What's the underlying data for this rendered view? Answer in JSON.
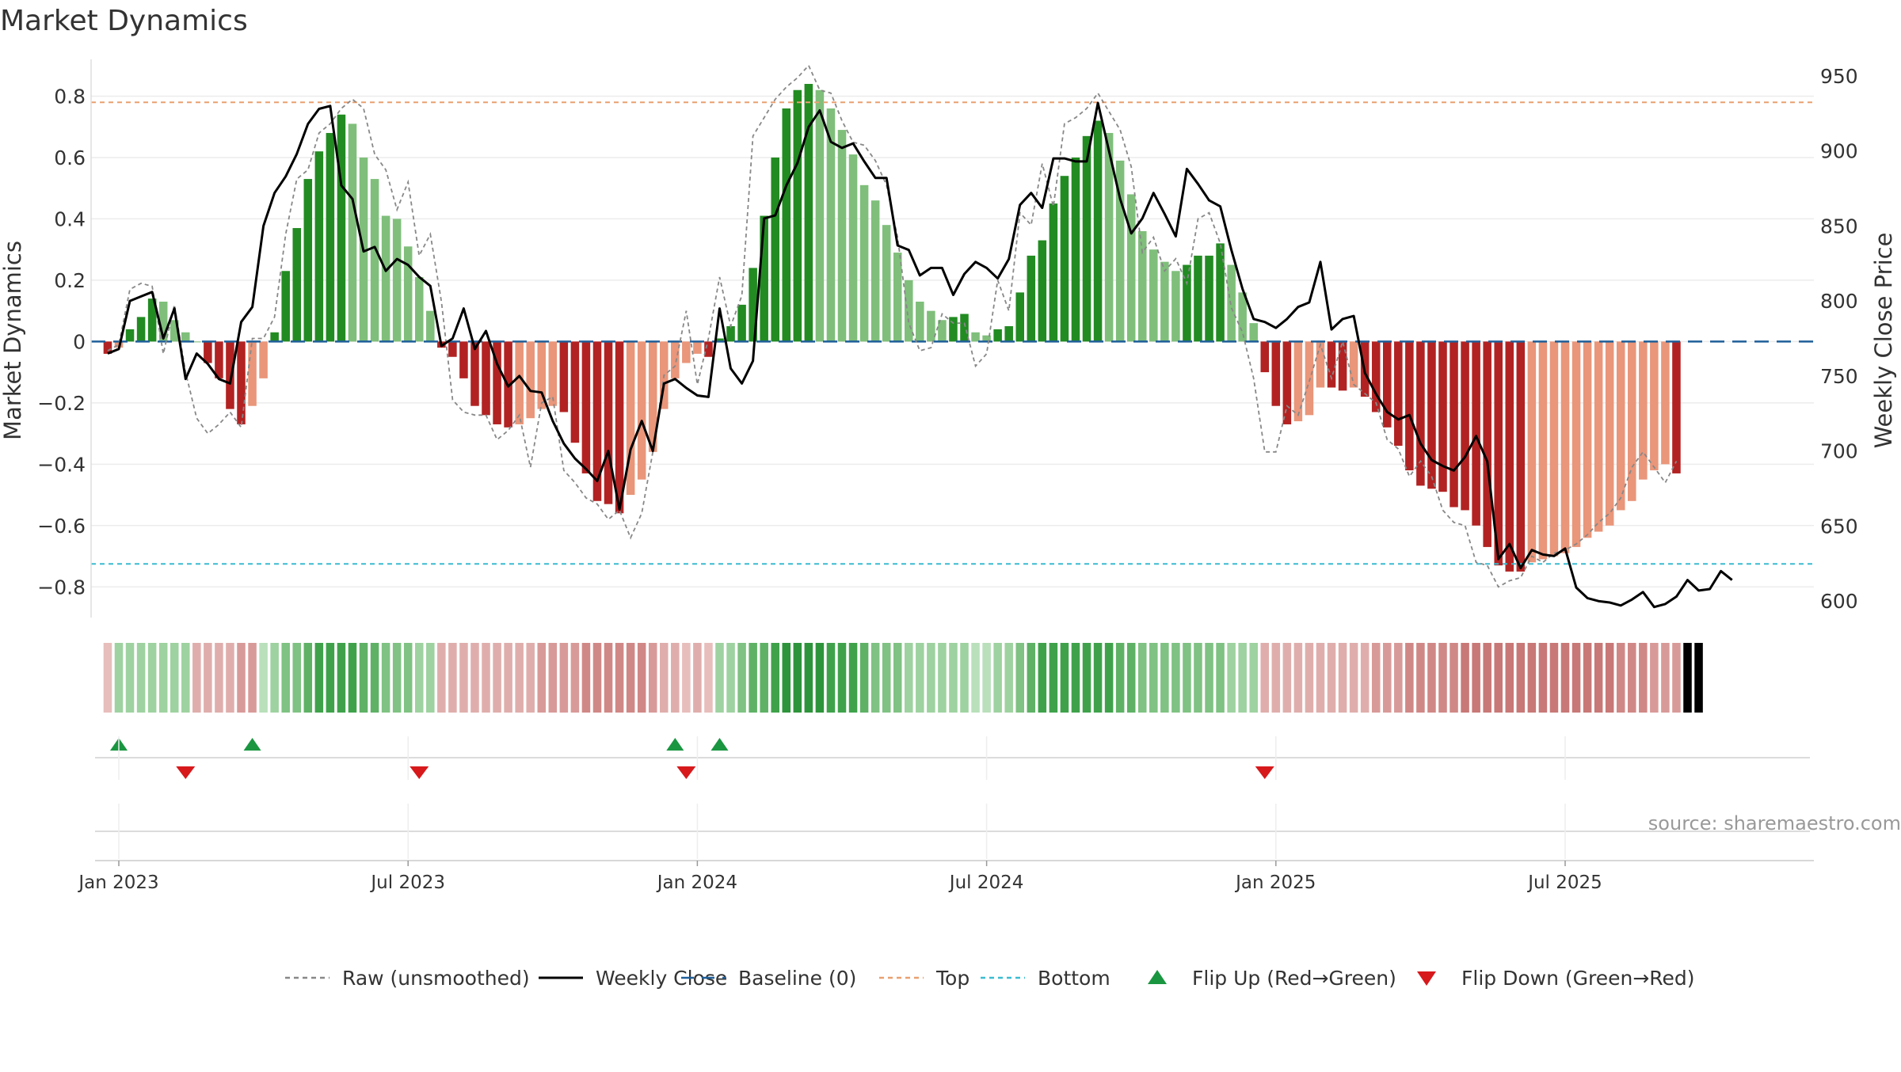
{
  "chart_data": {
    "type": "bar",
    "title": "Market Dynamics",
    "ylabel": "Market Dynamics",
    "y2label": "Weekly Close Price",
    "ylim": [
      -0.9,
      0.92
    ],
    "y2lim": [
      589,
      961
    ],
    "yticks": [
      -0.8,
      -0.6,
      -0.4,
      -0.2,
      0,
      0.2,
      0.4,
      0.6,
      0.8
    ],
    "y2ticks": [
      600,
      650,
      700,
      750,
      800,
      850,
      900,
      950
    ],
    "xticks": [
      {
        "label": "Jan 2023",
        "week": 0
      },
      {
        "label": "Jul 2023",
        "week": 26
      },
      {
        "label": "Jan 2024",
        "week": 52
      },
      {
        "label": "Jul 2024",
        "week": 78
      },
      {
        "label": "Jan 2025",
        "week": 104
      },
      {
        "label": "Jul 2025",
        "week": 130
      }
    ],
    "x_start_week": -2,
    "x_end_week": 141,
    "top_line": 0.78,
    "bottom_line": -0.725,
    "grid": true,
    "legend_position": "bottom",
    "bar_colors": {
      "strong_green": "#228b22",
      "weak_green": "#7fbf7b",
      "strong_red": "#b22222",
      "weak_red": "#e9967a"
    },
    "line_colors": {
      "close": "#000000",
      "raw": "#888888",
      "baseline": "#1f5f99",
      "top": "#e9a070",
      "bottom": "#3bbcd0",
      "flip_up": "#1a9641",
      "flip_down": "#d7191c"
    },
    "series": [
      {
        "name": "Market Dynamics",
        "values": [
          -0.04,
          -0.02,
          0.04,
          0.08,
          0.14,
          0.13,
          0.07,
          0.03,
          0,
          -0.07,
          -0.12,
          -0.22,
          -0.27,
          -0.21,
          -0.12,
          0.03,
          0.23,
          0.37,
          0.53,
          0.62,
          0.68,
          0.74,
          0.71,
          0.6,
          0.53,
          0.41,
          0.4,
          0.31,
          0.21,
          0.1,
          -0.02,
          -0.05,
          -0.12,
          -0.21,
          -0.24,
          -0.27,
          -0.28,
          -0.27,
          -0.25,
          -0.22,
          -0.21,
          -0.23,
          -0.33,
          -0.43,
          -0.52,
          -0.53,
          -0.56,
          -0.5,
          -0.45,
          -0.36,
          -0.22,
          -0.12,
          -0.07,
          -0.04,
          -0.05,
          0.01,
          0.05,
          0.12,
          0.24,
          0.41,
          0.6,
          0.76,
          0.82,
          0.84,
          0.82,
          0.76,
          0.69,
          0.61,
          0.51,
          0.46,
          0.38,
          0.29,
          0.2,
          0.13,
          0.1,
          0.07,
          0.08,
          0.09,
          0.03,
          0.02,
          0.04,
          0.05,
          0.16,
          0.28,
          0.33,
          0.45,
          0.54,
          0.6,
          0.67,
          0.72,
          0.68,
          0.59,
          0.48,
          0.36,
          0.3,
          0.26,
          0.23,
          0.25,
          0.28,
          0.28,
          0.32,
          0.25,
          0.16,
          0.06,
          -0.1,
          -0.21,
          -0.27,
          -0.26,
          -0.24,
          -0.15,
          -0.15,
          -0.16,
          -0.15,
          -0.18,
          -0.23,
          -0.28,
          -0.34,
          -0.42,
          -0.47,
          -0.48,
          -0.49,
          -0.54,
          -0.55,
          -0.6,
          -0.67,
          -0.73,
          -0.75,
          -0.75,
          -0.72,
          -0.71,
          -0.7,
          -0.69,
          -0.67,
          -0.64,
          -0.62,
          -0.6,
          -0.55,
          -0.52,
          -0.45,
          -0.42,
          -0.4,
          -0.43
        ]
      },
      {
        "name": "Raw (unsmoothed)",
        "values": [
          -0.03,
          -0.01,
          0.17,
          0.19,
          0.18,
          -0.04,
          0.12,
          -0.1,
          -0.25,
          -0.3,
          -0.27,
          -0.23,
          -0.28,
          0.01,
          0.01,
          0.08,
          0.35,
          0.53,
          0.56,
          0.68,
          0.71,
          0.76,
          0.79,
          0.76,
          0.61,
          0.56,
          0.43,
          0.52,
          0.28,
          0.35,
          0.13,
          -0.19,
          -0.23,
          -0.24,
          -0.24,
          -0.32,
          -0.29,
          -0.24,
          -0.41,
          -0.2,
          -0.18,
          -0.42,
          -0.46,
          -0.51,
          -0.53,
          -0.58,
          -0.55,
          -0.64,
          -0.56,
          -0.36,
          -0.11,
          -0.08,
          0.1,
          -0.14,
          0.01,
          0.21,
          0.05,
          0.15,
          0.67,
          0.73,
          0.79,
          0.83,
          0.86,
          0.9,
          0.82,
          0.81,
          0.72,
          0.65,
          0.64,
          0.59,
          0.51,
          0.34,
          0.06,
          -0.03,
          -0.02,
          0.09,
          0.06,
          0.06,
          -0.08,
          -0.04,
          0.2,
          0.1,
          0.42,
          0.38,
          0.58,
          0.44,
          0.71,
          0.73,
          0.76,
          0.81,
          0.75,
          0.69,
          0.57,
          0.29,
          0.34,
          0.23,
          0.27,
          0.19,
          0.4,
          0.42,
          0.32,
          0.11,
          0.03,
          -0.12,
          -0.36,
          -0.36,
          -0.21,
          -0.24,
          -0.13,
          -0.01,
          -0.12,
          0,
          -0.14,
          -0.17,
          -0.2,
          -0.32,
          -0.35,
          -0.44,
          -0.39,
          -0.44,
          -0.55,
          -0.59,
          -0.6,
          -0.72,
          -0.73,
          -0.8,
          -0.78,
          -0.77,
          -0.7,
          -0.72,
          -0.69,
          -0.68,
          -0.66,
          -0.63,
          -0.59,
          -0.56,
          -0.51,
          -0.41,
          -0.36,
          -0.41,
          -0.46,
          -0.39
        ]
      },
      {
        "name": "Weekly Close",
        "values": [
          765,
          768,
          800,
          803,
          806,
          775,
          795,
          748,
          765,
          758,
          748,
          745,
          786,
          796,
          850,
          872,
          883,
          898,
          918,
          928,
          930,
          877,
          868,
          833,
          836,
          820,
          828,
          824,
          816,
          810,
          770,
          775,
          795,
          768,
          780,
          758,
          743,
          750,
          740,
          739,
          720,
          705,
          695,
          688,
          680,
          700,
          661,
          701,
          720,
          700,
          745,
          748,
          742,
          737,
          736,
          795,
          755,
          745,
          760,
          855,
          857,
          877,
          892,
          916,
          927,
          906,
          902,
          905,
          893,
          882,
          882,
          837,
          834,
          817,
          822,
          822,
          804,
          818,
          826,
          822,
          815,
          828,
          864,
          872,
          862,
          895,
          895,
          893,
          893,
          932,
          900,
          868,
          845,
          855,
          872,
          858,
          843,
          888,
          878,
          867,
          863,
          834,
          808,
          788,
          786,
          782,
          788,
          796,
          799,
          826,
          781,
          788,
          790,
          752,
          738,
          726,
          721,
          724,
          705,
          694,
          690,
          687,
          696,
          710,
          693,
          628,
          638,
          622,
          634,
          631,
          630,
          635,
          609,
          602,
          600,
          599,
          597,
          601,
          606,
          596,
          598,
          603,
          614,
          607,
          608,
          620,
          614
        ]
      }
    ]
  },
  "state_strip": {
    "states": [
      "weak_red",
      "weak_green",
      "weak_green",
      "weak_green",
      "weak_green",
      "weak_green",
      "weak_green",
      "weak_green",
      "weak_red",
      "weak_red",
      "weak_red",
      "weak_red",
      "weak_red",
      "weak_red",
      "weak_green",
      "weak_green",
      "weak_green",
      "weak_green",
      "weak_green",
      "weak_green",
      "weak_green",
      "weak_green",
      "weak_green",
      "weak_green",
      "weak_green",
      "weak_green",
      "weak_green",
      "weak_green",
      "weak_green",
      "weak_green",
      "weak_red",
      "weak_red",
      "weak_red",
      "weak_red",
      "weak_red",
      "weak_red",
      "weak_red",
      "weak_red",
      "weak_red",
      "weak_red",
      "weak_red",
      "weak_red",
      "weak_red",
      "weak_red",
      "weak_red",
      "weak_red",
      "weak_red",
      "weak_red",
      "weak_red",
      "weak_red",
      "weak_red",
      "weak_red",
      "weak_red",
      "weak_red",
      "weak_red",
      "weak_green",
      "weak_green",
      "weak_green",
      "weak_green",
      "weak_green",
      "weak_green",
      "weak_green",
      "weak_green",
      "weak_green",
      "weak_green",
      "weak_green",
      "weak_green",
      "weak_green",
      "weak_green",
      "weak_green",
      "weak_green",
      "weak_green",
      "weak_green",
      "weak_green",
      "weak_green",
      "weak_green",
      "weak_green",
      "weak_green",
      "weak_green",
      "weak_green",
      "weak_green",
      "weak_green",
      "weak_green",
      "weak_green",
      "weak_green",
      "weak_green",
      "weak_green",
      "weak_green",
      "weak_green",
      "weak_green",
      "weak_green",
      "weak_green",
      "weak_green",
      "weak_green",
      "weak_green",
      "weak_green",
      "weak_green",
      "weak_green",
      "weak_green",
      "weak_green",
      "weak_green",
      "weak_green",
      "weak_green",
      "weak_green",
      "weak_red",
      "weak_red",
      "weak_red",
      "weak_red",
      "weak_red",
      "weak_red",
      "weak_red",
      "weak_red",
      "weak_red",
      "weak_red",
      "weak_red",
      "weak_red",
      "weak_red",
      "weak_red",
      "weak_red",
      "weak_red",
      "weak_red",
      "weak_red",
      "weak_red",
      "weak_red",
      "weak_red",
      "weak_red",
      "weak_red",
      "weak_red",
      "weak_red",
      "weak_red",
      "weak_red",
      "weak_red",
      "weak_red",
      "weak_red",
      "weak_red",
      "weak_red",
      "weak_red",
      "weak_red",
      "weak_red",
      "weak_red",
      "weak_red",
      "weak_red",
      "weak_red",
      "weak_red"
    ],
    "intensity": [
      0.2,
      0.3,
      0.3,
      0.3,
      0.3,
      0.3,
      0.3,
      0.3,
      0.25,
      0.3,
      0.35,
      0.4,
      0.45,
      0.45,
      0.2,
      0.35,
      0.45,
      0.55,
      0.65,
      0.75,
      0.85,
      0.85,
      0.8,
      0.7,
      0.6,
      0.55,
      0.5,
      0.45,
      0.4,
      0.35,
      0.25,
      0.3,
      0.35,
      0.35,
      0.4,
      0.4,
      0.4,
      0.4,
      0.4,
      0.45,
      0.45,
      0.5,
      0.55,
      0.6,
      0.65,
      0.7,
      0.7,
      0.65,
      0.6,
      0.5,
      0.4,
      0.3,
      0.2,
      0.25,
      0.2,
      0.3,
      0.4,
      0.5,
      0.6,
      0.7,
      0.85,
      0.95,
      1,
      1,
      0.95,
      0.9,
      0.85,
      0.75,
      0.65,
      0.55,
      0.5,
      0.45,
      0.35,
      0.3,
      0.25,
      0.25,
      0.25,
      0.25,
      0.2,
      0.2,
      0.3,
      0.4,
      0.55,
      0.65,
      0.75,
      0.85,
      0.9,
      0.9,
      0.85,
      0.8,
      0.75,
      0.7,
      0.6,
      0.55,
      0.5,
      0.45,
      0.45,
      0.5,
      0.55,
      0.55,
      0.5,
      0.4,
      0.3,
      0.3,
      0.35,
      0.4,
      0.4,
      0.4,
      0.35,
      0.35,
      0.35,
      0.35,
      0.35,
      0.4,
      0.45,
      0.5,
      0.55,
      0.6,
      0.6,
      0.65,
      0.65,
      0.7,
      0.75,
      0.8,
      0.85,
      0.85,
      0.9,
      0.9,
      0.85,
      0.85,
      0.85,
      0.8,
      0.8,
      0.8,
      0.75,
      0.75,
      0.7,
      0.65,
      0.6,
      0.55,
      0.55,
      0.55
    ]
  },
  "flips": {
    "up_weeks": [
      0,
      12,
      50,
      54
    ],
    "down_weeks": [
      6,
      27,
      51,
      103
    ]
  },
  "source_text": "source: sharemaestro.com",
  "legend": [
    {
      "label": "Raw (unsmoothed)",
      "kind": "dashed-line",
      "color": "#888888"
    },
    {
      "label": "Weekly Close",
      "kind": "line",
      "color": "#000000"
    },
    {
      "label": "Baseline (0)",
      "kind": "longdash-line",
      "color": "#1f5f99"
    },
    {
      "label": "Top",
      "kind": "dashed-line",
      "color": "#e9a070"
    },
    {
      "label": "Bottom",
      "kind": "dashed-line",
      "color": "#3bbcd0"
    },
    {
      "label": "Flip Up (Red→Green)",
      "kind": "triangle-up",
      "color": "#1a9641"
    },
    {
      "label": "Flip Down (Green→Red)",
      "kind": "triangle-down",
      "color": "#d7191c"
    }
  ]
}
